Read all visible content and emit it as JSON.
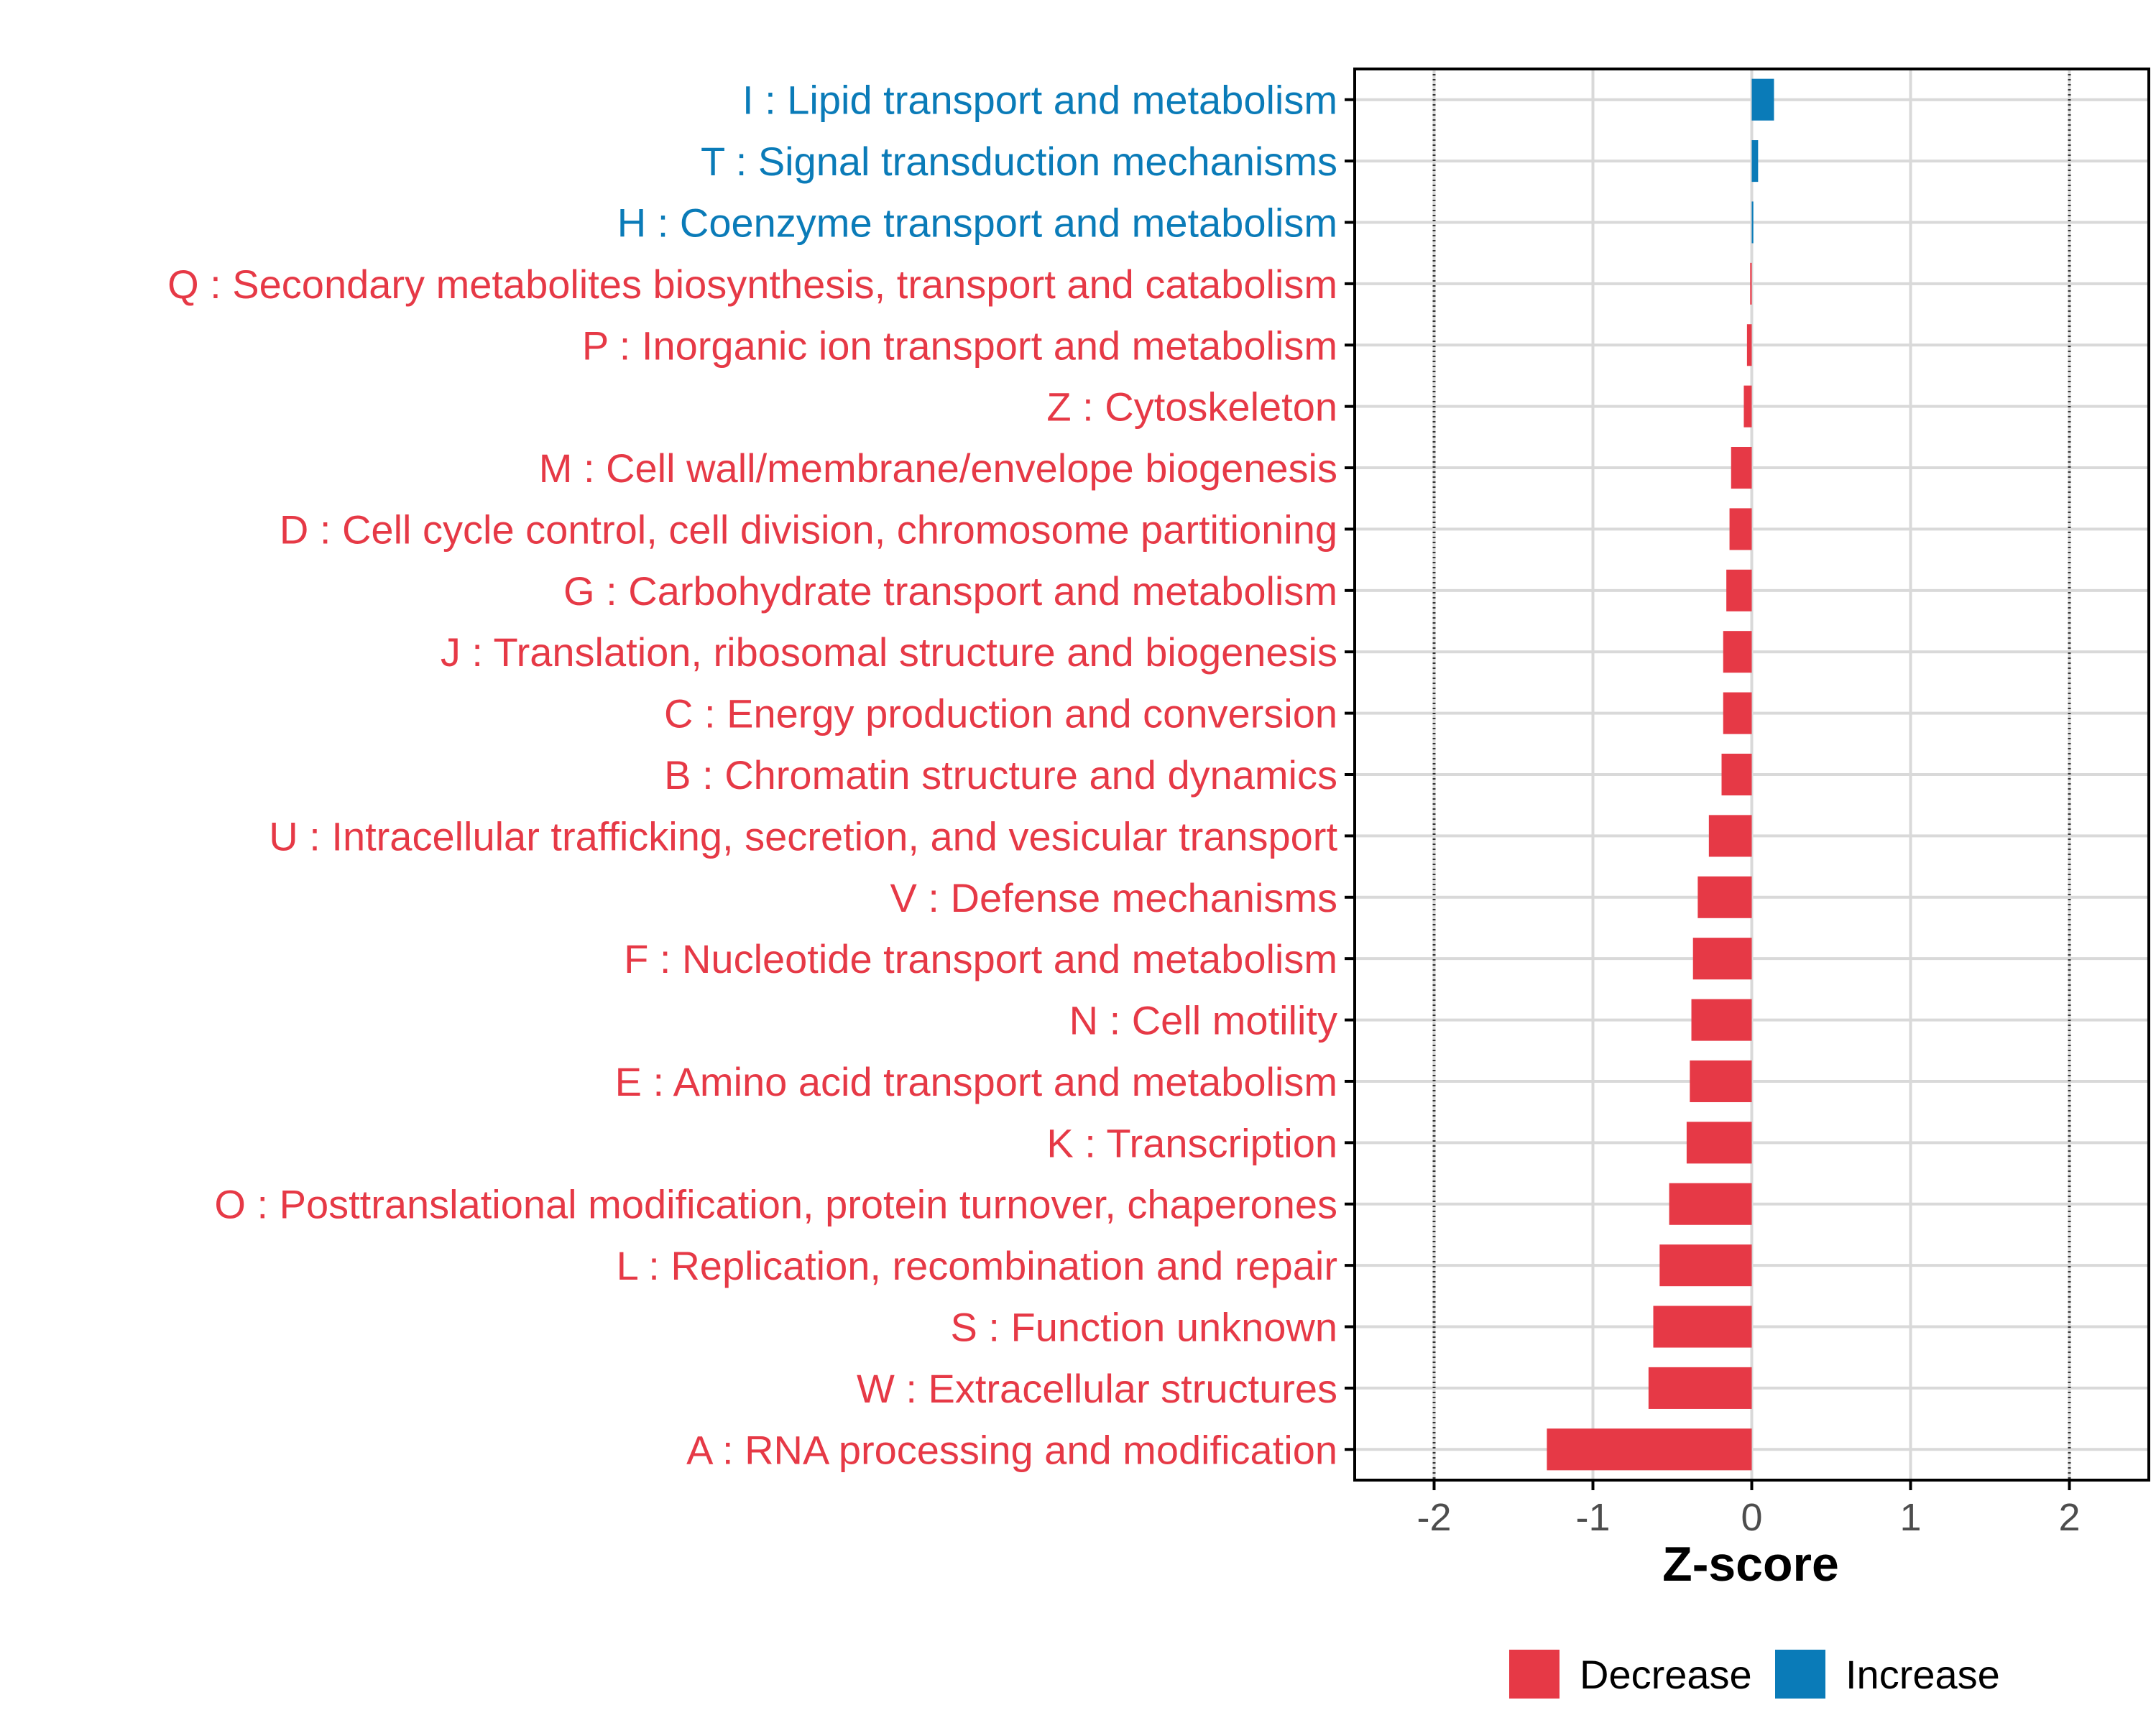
{
  "colors": {
    "decrease": "#E63946",
    "increase": "#0A7BB8",
    "grid": "#d9d9d9",
    "axis": "#000000",
    "tick_label": "#4d4d4d"
  },
  "chart_data": {
    "type": "bar",
    "orientation": "horizontal",
    "xlabel": "Z-score",
    "xlim": [
      -2.5,
      2.5
    ],
    "xticks": [
      -2,
      -1,
      0,
      1,
      2
    ],
    "xtick_labels": [
      "-2",
      "-1",
      "0",
      "1",
      "2"
    ],
    "reference_lines": [
      -2,
      2
    ],
    "grid": true,
    "legend_position": "bottom",
    "legend": [
      {
        "label": "Decrease",
        "color_key": "decrease"
      },
      {
        "label": "Increase",
        "color_key": "increase"
      }
    ],
    "categories": [
      "I : Lipid transport and metabolism",
      "T : Signal transduction mechanisms",
      "H : Coenzyme transport and metabolism",
      "Q : Secondary metabolites biosynthesis, transport and catabolism",
      "P : Inorganic ion transport and metabolism",
      "Z : Cytoskeleton",
      "M : Cell wall/membrane/envelope biogenesis",
      "D : Cell cycle control, cell division, chromosome partitioning",
      "G : Carbohydrate transport and metabolism",
      "J : Translation, ribosomal structure and biogenesis",
      "C : Energy production and conversion",
      "B : Chromatin structure and dynamics",
      "U : Intracellular trafficking, secretion, and vesicular transport",
      "V : Defense mechanisms",
      "F : Nucleotide transport and metabolism",
      "N : Cell motility",
      "E : Amino acid transport and metabolism",
      "K : Transcription",
      "O : Posttranslational modification, protein turnover, chaperones",
      "L : Replication, recombination and repair",
      "S : Function unknown",
      "W : Extracellular structures",
      "A : RNA processing and modification"
    ],
    "values": [
      0.14,
      0.04,
      0.01,
      -0.01,
      -0.03,
      -0.05,
      -0.13,
      -0.14,
      -0.16,
      -0.18,
      -0.18,
      -0.19,
      -0.27,
      -0.34,
      -0.37,
      -0.38,
      -0.39,
      -0.41,
      -0.52,
      -0.58,
      -0.62,
      -0.65,
      -1.29
    ],
    "direction": [
      "Increase",
      "Increase",
      "Increase",
      "Decrease",
      "Decrease",
      "Decrease",
      "Decrease",
      "Decrease",
      "Decrease",
      "Decrease",
      "Decrease",
      "Decrease",
      "Decrease",
      "Decrease",
      "Decrease",
      "Decrease",
      "Decrease",
      "Decrease",
      "Decrease",
      "Decrease",
      "Decrease",
      "Decrease",
      "Decrease"
    ]
  }
}
